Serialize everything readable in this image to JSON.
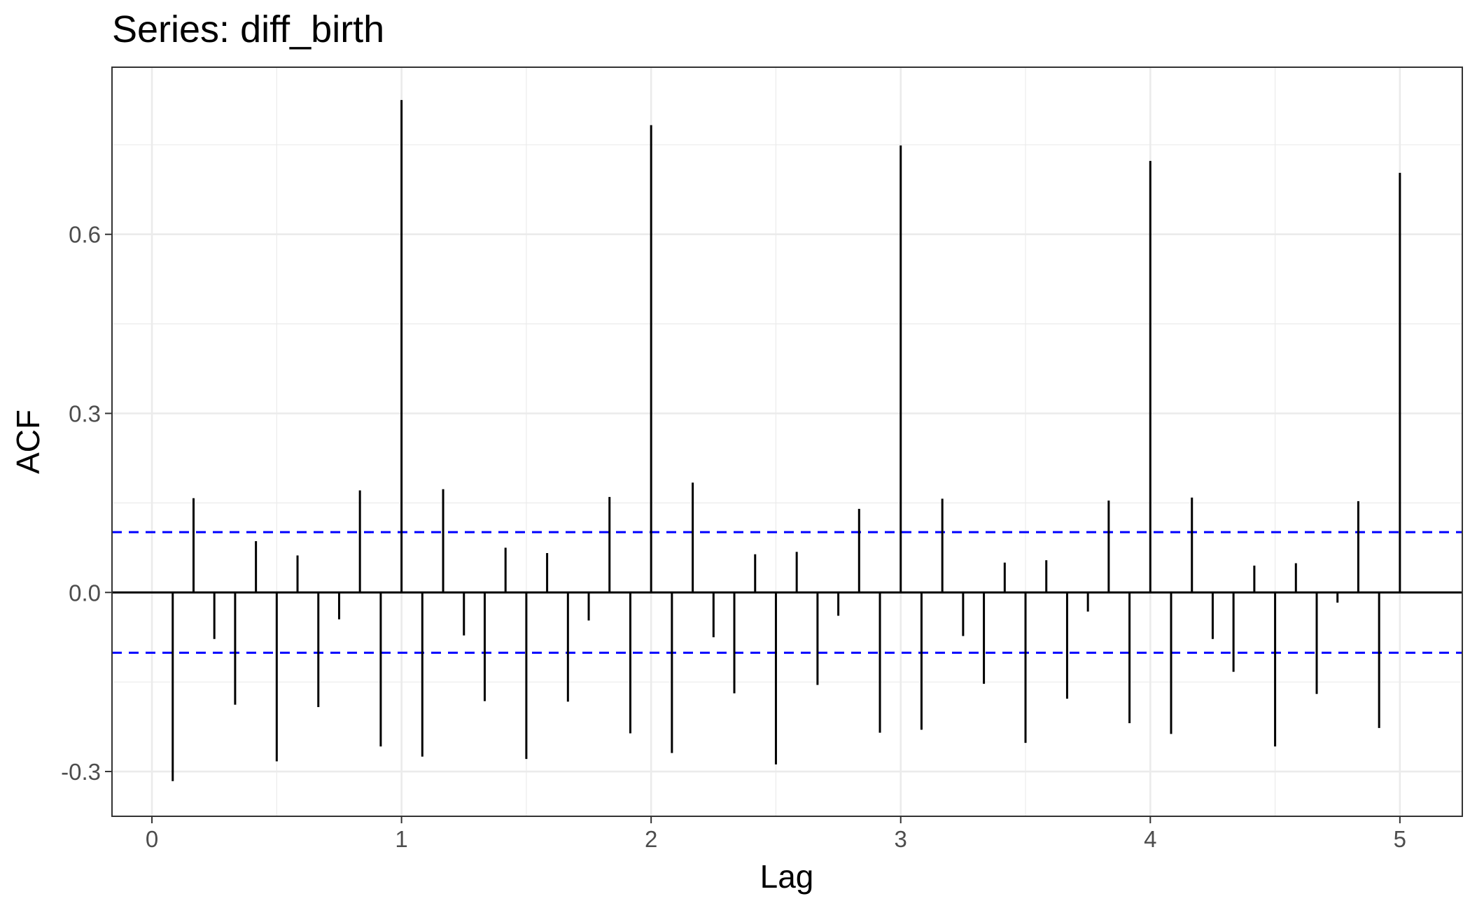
{
  "chart_data": {
    "type": "bar",
    "title": "Series: diff_birth",
    "xlabel": "Lag",
    "ylabel": "ACF",
    "xlim": [
      -0.16,
      5.25
    ],
    "ylim": [
      -0.375,
      0.88
    ],
    "x_ticks": [
      0,
      1,
      2,
      3,
      4,
      5
    ],
    "x_tick_labels": [
      "0",
      "1",
      "2",
      "3",
      "4",
      "5"
    ],
    "y_ticks": [
      -0.3,
      0.0,
      0.3,
      0.6
    ],
    "y_tick_labels": [
      "-0.3",
      "0.0",
      "0.3",
      "0.6"
    ],
    "grid": true,
    "confidence_band": 0.101,
    "colors": {
      "bars": "#000000",
      "confidence": "#0000ff",
      "grid": "#ebebeb",
      "zero_line": "#000000"
    },
    "x": [
      0.0833,
      0.1667,
      0.25,
      0.3333,
      0.4167,
      0.5,
      0.5833,
      0.6667,
      0.75,
      0.8333,
      0.9167,
      1.0,
      1.0833,
      1.1667,
      1.25,
      1.3333,
      1.4167,
      1.5,
      1.5833,
      1.6667,
      1.75,
      1.8333,
      1.9167,
      2.0,
      2.0833,
      2.1667,
      2.25,
      2.3333,
      2.4167,
      2.5,
      2.5833,
      2.6667,
      2.75,
      2.8333,
      2.9167,
      3.0,
      3.0833,
      3.1667,
      3.25,
      3.3333,
      3.4167,
      3.5,
      3.5833,
      3.6667,
      3.75,
      3.8333,
      3.9167,
      4.0,
      4.0833,
      4.1667,
      4.25,
      4.3333,
      4.4167,
      4.5,
      4.5833,
      4.6667,
      4.75,
      4.8333,
      4.9167,
      5.0
    ],
    "values": [
      -0.316,
      0.158,
      -0.078,
      -0.188,
      0.086,
      -0.283,
      0.062,
      -0.192,
      -0.045,
      0.171,
      -0.258,
      0.825,
      -0.275,
      0.173,
      -0.072,
      -0.182,
      0.075,
      -0.279,
      0.066,
      -0.183,
      -0.047,
      0.16,
      -0.236,
      0.783,
      -0.269,
      0.184,
      -0.075,
      -0.169,
      0.064,
      -0.288,
      0.068,
      -0.155,
      -0.039,
      0.14,
      -0.235,
      0.749,
      -0.23,
      0.157,
      -0.073,
      -0.153,
      0.05,
      -0.252,
      0.054,
      -0.178,
      -0.032,
      0.154,
      -0.219,
      0.723,
      -0.237,
      0.159,
      -0.078,
      -0.133,
      0.045,
      -0.258,
      0.049,
      -0.17,
      -0.017,
      0.153,
      -0.227,
      0.703
    ]
  }
}
